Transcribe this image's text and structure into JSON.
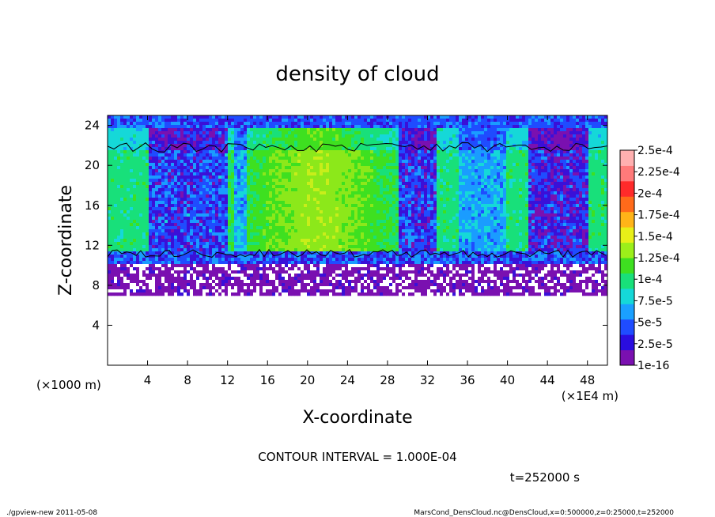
{
  "chart_data": {
    "type": "heatmap",
    "title": "density of cloud",
    "xlabel": "X-coordinate",
    "ylabel": "Z-coordinate",
    "x_unit_left": "(×1000 m)",
    "x_unit_right": "(×1E4 m)",
    "xlim": [
      0,
      50
    ],
    "ylim": [
      0,
      25
    ],
    "x_ticks": [
      "4",
      "8",
      "12",
      "16",
      "20",
      "24",
      "28",
      "32",
      "36",
      "40",
      "44",
      "48"
    ],
    "y_ticks": [
      "4",
      "8",
      "12",
      "16",
      "20",
      "24"
    ],
    "colorbar": {
      "levels": [
        "1e-16",
        "2.5e-5",
        "5e-5",
        "7.5e-5",
        "1e-4",
        "1.25e-4",
        "1.5e-4",
        "1.75e-4",
        "2e-4",
        "2.25e-4",
        "2.5e-4"
      ],
      "colors": [
        "#7a10b0",
        "#2a0de0",
        "#1f4cff",
        "#1aa0ff",
        "#15d8d8",
        "#18e07a",
        "#3ee020",
        "#9cef1a",
        "#e8ef18",
        "#ffb418",
        "#ff6a1a",
        "#ff2a2a",
        "#ff7a7a",
        "#ffb0b0"
      ]
    },
    "cloud_base_z": 7.0,
    "cloud_top_z": 25.0,
    "contour_interval_text": "CONTOUR INTERVAL = 1.000E-04"
  },
  "time_text": "t=252000 s",
  "footer": {
    "left": "./gpview-new  2011-05-08",
    "right": "MarsCond_DensCloud.nc@DensCloud,x=0:500000,z=0:25000,t=252000"
  }
}
